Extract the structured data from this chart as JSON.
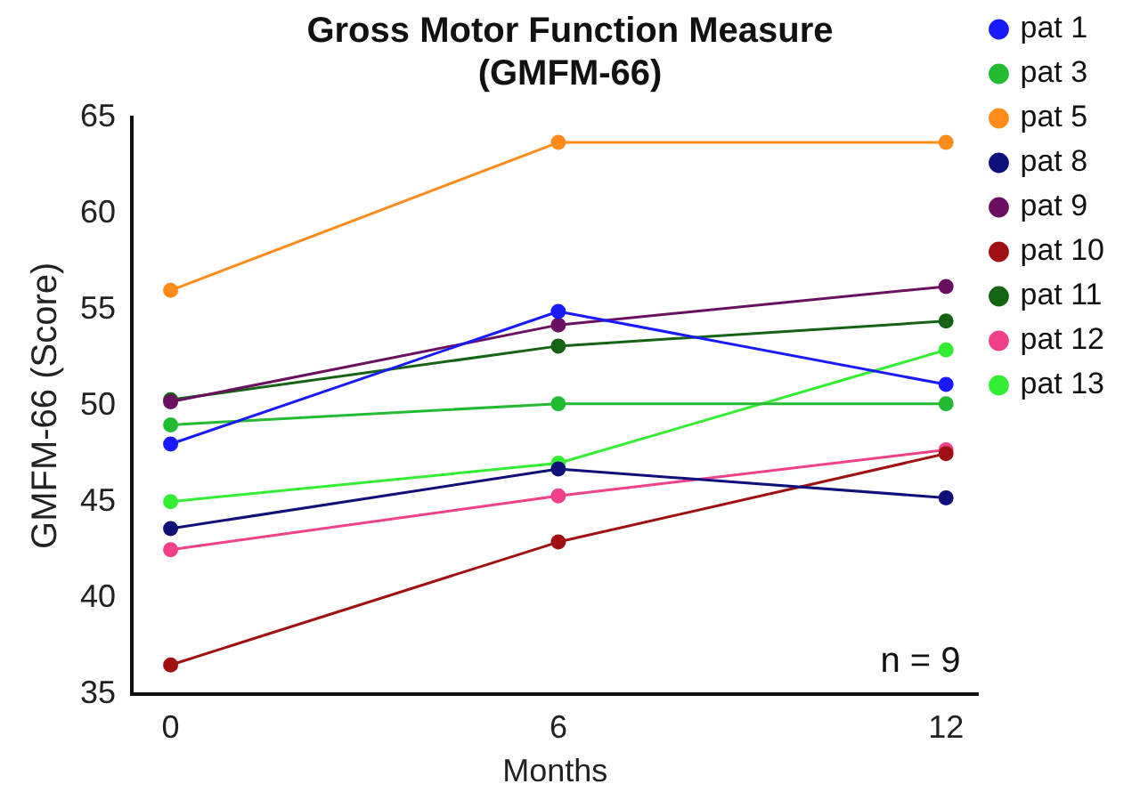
{
  "chart_data": {
    "type": "line",
    "title": "Gross Motor Function Measure\n(GMFM-66)",
    "xlabel": "Months",
    "ylabel": "GMFM-66 (Score)",
    "x": [
      0,
      6,
      12
    ],
    "xlim": [
      -0.6,
      12.5
    ],
    "xticks": [
      0,
      6,
      12
    ],
    "ylim": [
      35,
      65
    ],
    "yticks": [
      35,
      40,
      45,
      50,
      55,
      60,
      65
    ],
    "grid": false,
    "legend": "right",
    "marker": "circle",
    "line_style": "solid",
    "annotations": [
      "n = 9"
    ],
    "series": [
      {
        "name": "pat 1",
        "color": "#1a1aff",
        "values": [
          48,
          54.9,
          51.1
        ]
      },
      {
        "name": "pat 3",
        "color": "#22bb33",
        "values": [
          49,
          50.1,
          50.1
        ]
      },
      {
        "name": "pat 5",
        "color": "#ff8c1a",
        "values": [
          56,
          63.7,
          63.7
        ]
      },
      {
        "name": "pat 8",
        "color": "#10107a",
        "values": [
          43.6,
          46.7,
          45.2
        ]
      },
      {
        "name": "pat 9",
        "color": "#6b1060",
        "values": [
          50.2,
          54.2,
          56.2
        ]
      },
      {
        "name": "pat 10",
        "color": "#a01010",
        "values": [
          36.5,
          42.9,
          47.5
        ]
      },
      {
        "name": "pat 11",
        "color": "#146414",
        "values": [
          50.3,
          53.1,
          54.4
        ]
      },
      {
        "name": "pat 12",
        "color": "#f0408a",
        "values": [
          42.5,
          45.3,
          47.7
        ]
      },
      {
        "name": "pat 13",
        "color": "#33ee33",
        "values": [
          45,
          47,
          52.9
        ]
      }
    ]
  }
}
